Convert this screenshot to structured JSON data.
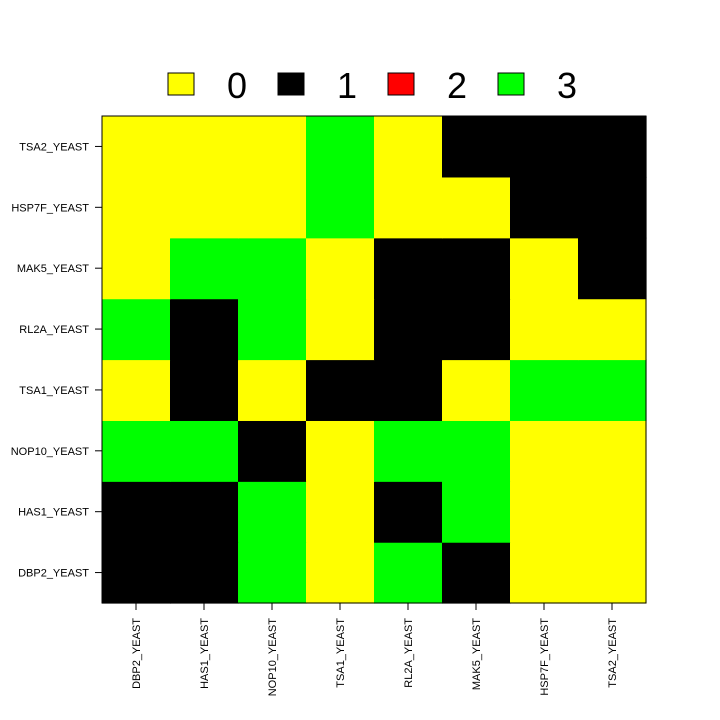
{
  "chart_data": {
    "type": "heatmap",
    "x_labels": [
      "DBP2_YEAST",
      "HAS1_YEAST",
      "NOP10_YEAST",
      "TSA1_YEAST",
      "RL2A_YEAST",
      "MAK5_YEAST",
      "HSP7F_YEAST",
      "TSA2_YEAST"
    ],
    "y_labels": [
      "DBP2_YEAST",
      "HAS1_YEAST",
      "NOP10_YEAST",
      "TSA1_YEAST",
      "RL2A_YEAST",
      "MAK5_YEAST",
      "HSP7F_YEAST",
      "TSA2_YEAST"
    ],
    "values": [
      [
        1,
        1,
        3,
        0,
        3,
        1,
        0,
        0
      ],
      [
        1,
        1,
        3,
        0,
        1,
        3,
        0,
        0
      ],
      [
        3,
        3,
        1,
        0,
        3,
        3,
        0,
        0
      ],
      [
        0,
        1,
        0,
        1,
        1,
        0,
        3,
        3
      ],
      [
        3,
        1,
        3,
        0,
        1,
        1,
        0,
        0
      ],
      [
        0,
        3,
        3,
        0,
        1,
        1,
        0,
        1
      ],
      [
        0,
        0,
        0,
        3,
        0,
        0,
        1,
        1
      ],
      [
        0,
        0,
        0,
        3,
        0,
        1,
        1,
        1
      ]
    ],
    "legend": [
      {
        "label": "0",
        "color": "#ffff00"
      },
      {
        "label": "1",
        "color": "#000000"
      },
      {
        "label": "2",
        "color": "#ff0000"
      },
      {
        "label": "3",
        "color": "#00ff00"
      }
    ],
    "legend_position": "top",
    "title": "",
    "xlabel": "",
    "ylabel": "",
    "grid": false
  }
}
